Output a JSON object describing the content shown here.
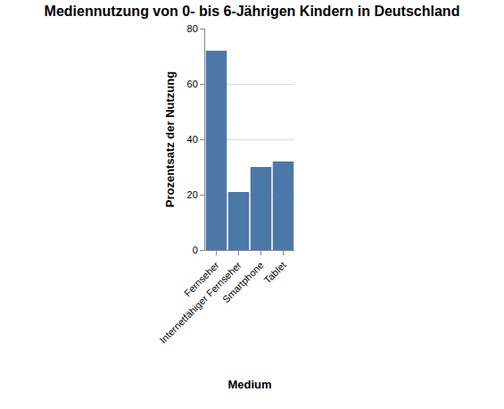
{
  "chart_data": {
    "type": "bar",
    "title": "Mediennutzung von 0- bis 6-Jährigen Kindern in Deutschland",
    "x_label": "Medium",
    "y_label": "Prozentsatz der Nutzung",
    "categories": [
      "Fernseher",
      "Internetfähiger Fernseher",
      "Smartphone",
      "Tablet"
    ],
    "values": [
      72,
      21,
      30,
      32
    ],
    "color": "#4c78a8",
    "ylim": [
      0,
      80
    ],
    "yticks": [
      0,
      20,
      40,
      60,
      80
    ],
    "grid": true
  }
}
